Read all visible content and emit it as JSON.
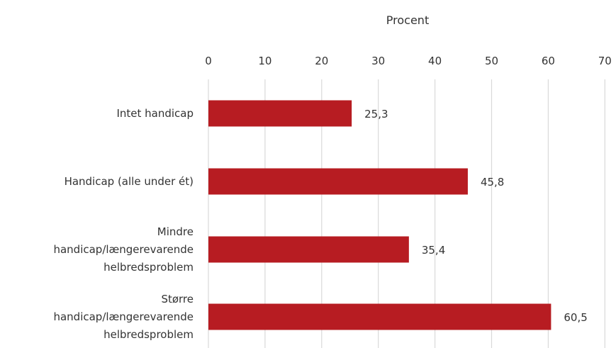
{
  "chart_data": {
    "type": "bar",
    "orientation": "horizontal",
    "xlabel": "Procent",
    "xlim": [
      0,
      70
    ],
    "xticks": [
      0,
      10,
      20,
      30,
      40,
      50,
      60,
      70
    ],
    "grid": true,
    "categories": [
      [
        "Intet handicap"
      ],
      [
        "Handicap (alle under ét)"
      ],
      [
        "Mindre",
        "handicap/længerevarende",
        "helbredsproblem"
      ],
      [
        "Større",
        "handicap/længerevarende",
        "helbredsproblem"
      ]
    ],
    "values": [
      25.3,
      45.8,
      35.4,
      60.5
    ],
    "value_labels": [
      "25,3",
      "45,8",
      "35,4",
      "60,5"
    ],
    "bar_color": "#b71c22",
    "grid_color": "#d9d9d9"
  }
}
